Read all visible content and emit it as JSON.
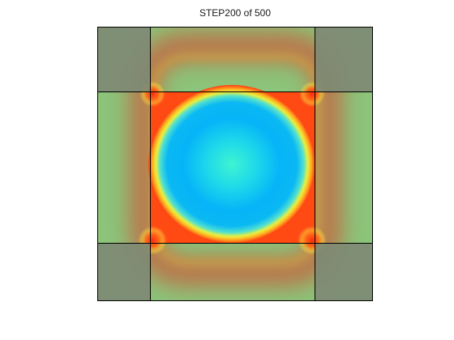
{
  "figure": {
    "title": "STEP200 of 500"
  },
  "colors": {
    "background": "#ffffff",
    "field_base": "#8bc47a",
    "corner_region": "#84907a",
    "ring_outer": "#c25a3e",
    "ring_inner_hot": "#ff3a12",
    "ring_yellow": "#ffe23a",
    "center_cyan": "#3ef0d2",
    "mid_blue": "#0ab8f4",
    "grid_line": "#000000"
  }
}
